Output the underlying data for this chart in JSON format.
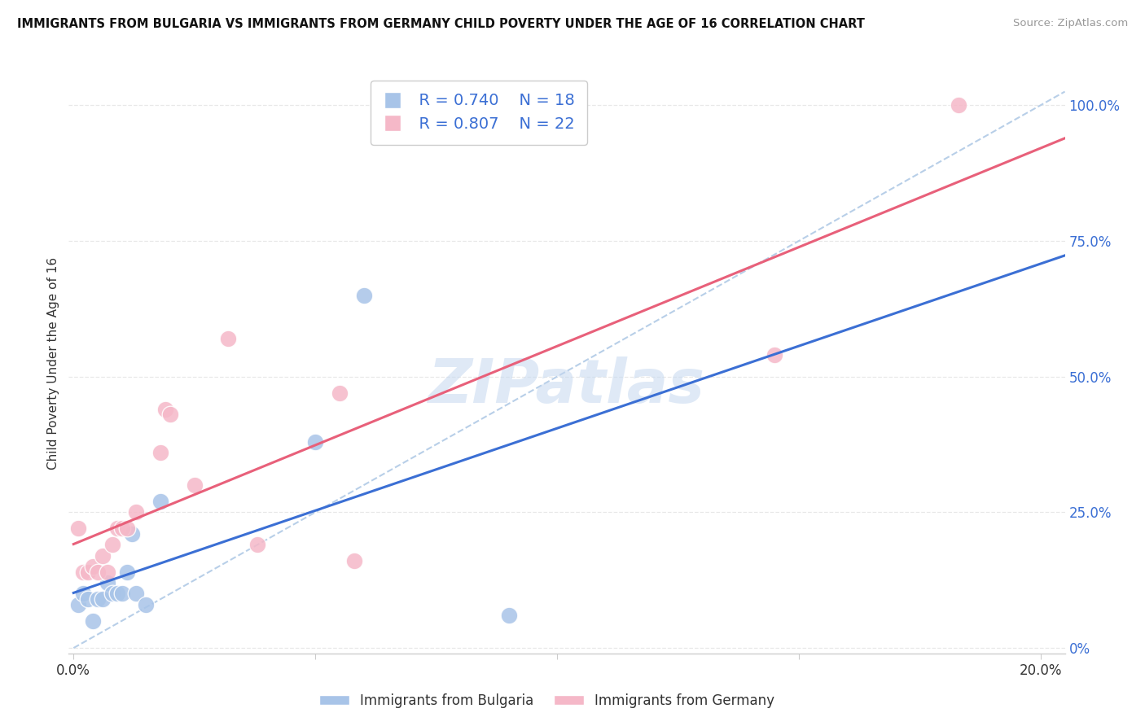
{
  "title": "IMMIGRANTS FROM BULGARIA VS IMMIGRANTS FROM GERMANY CHILD POVERTY UNDER THE AGE OF 16 CORRELATION CHART",
  "source": "Source: ZipAtlas.com",
  "ylabel": "Child Poverty Under the Age of 16",
  "xlim": [
    -0.001,
    0.205
  ],
  "ylim": [
    -0.01,
    1.06
  ],
  "xticks": [
    0.0,
    0.05,
    0.1,
    0.15,
    0.2
  ],
  "xtick_labels": [
    "0.0%",
    "",
    "",
    "",
    "20.0%"
  ],
  "ytick_labels_right": [
    "0%",
    "25.0%",
    "50.0%",
    "75.0%",
    "100.0%"
  ],
  "yticks": [
    0.0,
    0.25,
    0.5,
    0.75,
    1.0
  ],
  "legend_r_bulgaria": "R = 0.740",
  "legend_n_bulgaria": "N = 18",
  "legend_r_germany": "R = 0.807",
  "legend_n_germany": "N = 22",
  "bulgaria_color": "#a8c4e8",
  "germany_color": "#f5b8c8",
  "bulgaria_line_color": "#3b6fd4",
  "germany_line_color": "#e8607a",
  "ref_line_color": "#b8cfe8",
  "watermark": "ZIPatlas",
  "bulgaria_x": [
    0.001,
    0.002,
    0.003,
    0.004,
    0.005,
    0.006,
    0.007,
    0.008,
    0.009,
    0.01,
    0.011,
    0.012,
    0.013,
    0.015,
    0.018,
    0.05,
    0.06,
    0.09
  ],
  "bulgaria_y": [
    0.08,
    0.1,
    0.09,
    0.05,
    0.09,
    0.09,
    0.12,
    0.1,
    0.1,
    0.1,
    0.14,
    0.21,
    0.1,
    0.08,
    0.27,
    0.38,
    0.65,
    0.06
  ],
  "germany_x": [
    0.001,
    0.002,
    0.003,
    0.004,
    0.005,
    0.006,
    0.007,
    0.008,
    0.009,
    0.01,
    0.011,
    0.013,
    0.018,
    0.019,
    0.02,
    0.025,
    0.032,
    0.038,
    0.055,
    0.058,
    0.145,
    0.183
  ],
  "germany_y": [
    0.22,
    0.14,
    0.14,
    0.15,
    0.14,
    0.17,
    0.14,
    0.19,
    0.22,
    0.22,
    0.22,
    0.25,
    0.36,
    0.44,
    0.43,
    0.3,
    0.57,
    0.19,
    0.47,
    0.16,
    0.54,
    1.0
  ],
  "scatter_size": 220,
  "text_color_blue": "#3b6fd4",
  "text_color_dark": "#333333",
  "grid_color": "#e8e8e8",
  "spine_color": "#cccccc",
  "legend_box_color": "#cccccc"
}
